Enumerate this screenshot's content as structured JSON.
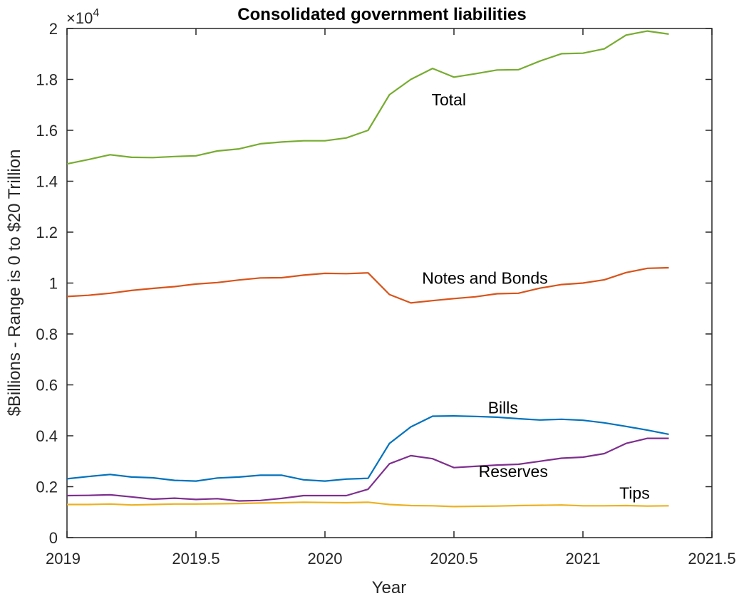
{
  "chart_data": {
    "type": "line",
    "title": "Consolidated government liabilities",
    "xlabel": "Year",
    "ylabel": "$Billions - Range is 0 to $20 Trillion",
    "y_exponent_base": "×10",
    "y_exponent_power": "4",
    "xlim": [
      2019,
      2021.5
    ],
    "ylim": [
      0,
      2
    ],
    "x_ticks": [
      2019,
      2019.5,
      2020,
      2020.5,
      2021,
      2021.5
    ],
    "x_tick_labels": [
      "2019",
      "2019.5",
      "2020",
      "2020.5",
      "2021",
      "2021.5"
    ],
    "y_ticks": [
      0,
      0.2,
      0.4,
      0.6,
      0.8,
      1,
      1.2,
      1.4,
      1.6,
      1.8,
      2
    ],
    "y_tick_labels": [
      "0",
      "0.2",
      "0.4",
      "0.6",
      "0.8",
      "1",
      "1.2",
      "1.4",
      "1.6",
      "1.8",
      "2"
    ],
    "grid": false,
    "x": [
      2019.0,
      2019.083,
      2019.167,
      2019.25,
      2019.333,
      2019.417,
      2019.5,
      2019.583,
      2019.667,
      2019.75,
      2019.833,
      2019.917,
      2020.0,
      2020.083,
      2020.167,
      2020.25,
      2020.333,
      2020.417,
      2020.5,
      2020.583,
      2020.667,
      2020.75,
      2020.833,
      2020.917,
      2021.0,
      2021.083,
      2021.167,
      2021.25,
      2021.333
    ],
    "series": [
      {
        "name": "Total",
        "color": "#77ac30",
        "values": [
          1.468,
          1.485,
          1.504,
          1.494,
          1.493,
          1.497,
          1.5,
          1.519,
          1.527,
          1.547,
          1.554,
          1.559,
          1.559,
          1.57,
          1.6,
          1.74,
          1.8,
          1.843,
          1.809,
          1.822,
          1.837,
          1.838,
          1.872,
          1.901,
          1.903,
          1.92,
          1.974,
          1.99,
          1.978
        ]
      },
      {
        "name": "Notes and Bonds",
        "color": "#d95319",
        "values": [
          0.947,
          0.952,
          0.96,
          0.971,
          0.979,
          0.986,
          0.996,
          1.002,
          1.012,
          1.02,
          1.021,
          1.031,
          1.038,
          1.037,
          1.04,
          0.955,
          0.922,
          0.931,
          0.939,
          0.946,
          0.958,
          0.96,
          0.98,
          0.994,
          1.0,
          1.013,
          1.041,
          1.058,
          1.06
        ]
      },
      {
        "name": "Bills",
        "color": "#0072bd",
        "values": [
          0.231,
          0.24,
          0.248,
          0.238,
          0.235,
          0.225,
          0.222,
          0.234,
          0.238,
          0.245,
          0.245,
          0.227,
          0.222,
          0.23,
          0.233,
          0.37,
          0.435,
          0.477,
          0.478,
          0.476,
          0.473,
          0.467,
          0.462,
          0.465,
          0.461,
          0.451,
          0.437,
          0.422,
          0.406
        ]
      },
      {
        "name": "Reserves",
        "color": "#7e2f8e",
        "values": [
          0.165,
          0.166,
          0.168,
          0.16,
          0.151,
          0.155,
          0.15,
          0.153,
          0.144,
          0.146,
          0.154,
          0.165,
          0.165,
          0.165,
          0.19,
          0.29,
          0.322,
          0.31,
          0.275,
          0.28,
          0.285,
          0.288,
          0.3,
          0.312,
          0.316,
          0.33,
          0.37,
          0.39,
          0.39
        ]
      },
      {
        "name": "Tips",
        "color": "#edb120",
        "values": [
          0.13,
          0.13,
          0.132,
          0.128,
          0.13,
          0.132,
          0.132,
          0.133,
          0.134,
          0.136,
          0.137,
          0.139,
          0.138,
          0.137,
          0.139,
          0.13,
          0.126,
          0.125,
          0.122,
          0.123,
          0.124,
          0.126,
          0.127,
          0.128,
          0.125,
          0.125,
          0.126,
          0.124,
          0.125
        ]
      }
    ],
    "annotations": [
      {
        "text": "Total",
        "x": 2020.48,
        "y": 1.72
      },
      {
        "text": "Notes and Bonds",
        "x": 2020.62,
        "y": 1.02
      },
      {
        "text": "Bills",
        "x": 2020.69,
        "y": 0.51
      },
      {
        "text": "Reserves",
        "x": 2020.73,
        "y": 0.26
      },
      {
        "text": "Tips",
        "x": 2021.2,
        "y": 0.175
      }
    ]
  }
}
